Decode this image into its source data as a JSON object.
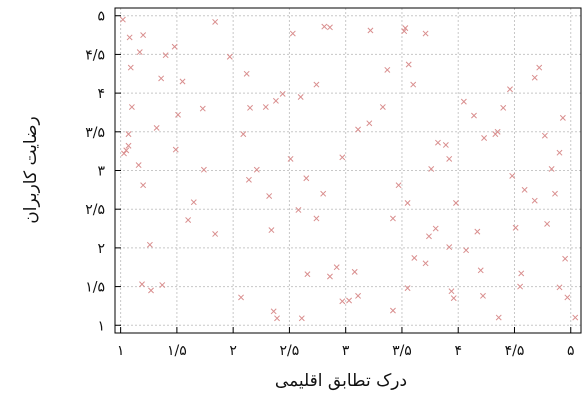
{
  "chart_data": {
    "type": "scatter",
    "xlabel": "درک تطابق اقلیمی",
    "ylabel": "رضایت کاربران",
    "xlim": [
      0.95,
      5.1
    ],
    "ylim": [
      0.9,
      5.1
    ],
    "grid": true,
    "marker": "x",
    "marker_color": "#d98e8e",
    "x_ticks": [
      {
        "value": 1,
        "label": "۱"
      },
      {
        "value": 1.5,
        "label": "۱/۵"
      },
      {
        "value": 2,
        "label": "۲"
      },
      {
        "value": 2.5,
        "label": "۲/۵"
      },
      {
        "value": 3,
        "label": "۳"
      },
      {
        "value": 3.5,
        "label": "۳/۵"
      },
      {
        "value": 4,
        "label": "۴"
      },
      {
        "value": 4.5,
        "label": "۴/۵"
      },
      {
        "value": 5,
        "label": "۵"
      }
    ],
    "y_ticks": [
      {
        "value": 1,
        "label": "۱"
      },
      {
        "value": 1.5,
        "label": "۱/۵"
      },
      {
        "value": 2,
        "label": "۲"
      },
      {
        "value": 2.5,
        "label": "۲/۵"
      },
      {
        "value": 3,
        "label": "۳"
      },
      {
        "value": 3.5,
        "label": "۳/۵"
      },
      {
        "value": 4,
        "label": "۴"
      },
      {
        "value": 4.5,
        "label": "۴/۵"
      },
      {
        "value": 5,
        "label": "۵"
      }
    ],
    "points": [
      [
        1.09,
        4.33
      ],
      [
        1.08,
        4.72
      ],
      [
        1.02,
        4.95
      ],
      [
        1.2,
        4.75
      ],
      [
        1.17,
        4.53
      ],
      [
        1.07,
        3.47
      ],
      [
        1.05,
        3.26
      ],
      [
        1.16,
        3.07
      ],
      [
        1.07,
        3.32
      ],
      [
        1.1,
        3.82
      ],
      [
        1.03,
        3.22
      ],
      [
        1.26,
        2.04
      ],
      [
        1.2,
        2.81
      ],
      [
        1.32,
        3.55
      ],
      [
        1.4,
        4.49
      ],
      [
        1.48,
        4.6
      ],
      [
        1.36,
        4.19
      ],
      [
        1.51,
        3.72
      ],
      [
        1.6,
        2.36
      ],
      [
        1.73,
        3.8
      ],
      [
        1.74,
        3.01
      ],
      [
        1.84,
        2.18
      ],
      [
        1.84,
        4.92
      ],
      [
        1.27,
        1.45
      ],
      [
        1.19,
        1.53
      ],
      [
        1.37,
        1.52
      ],
      [
        1.49,
        3.27
      ],
      [
        1.55,
        4.15
      ],
      [
        1.65,
        2.59
      ],
      [
        1.97,
        4.47
      ],
      [
        2.12,
        4.25
      ],
      [
        2.29,
        3.82
      ],
      [
        2.38,
        3.9
      ],
      [
        2.44,
        3.99
      ],
      [
        2.21,
        3.01
      ],
      [
        2.09,
        3.47
      ],
      [
        2.15,
        3.81
      ],
      [
        2.14,
        2.88
      ],
      [
        2.34,
        2.23
      ],
      [
        2.53,
        4.77
      ],
      [
        2.6,
        3.95
      ],
      [
        2.74,
        4.11
      ],
      [
        2.81,
        4.86
      ],
      [
        2.86,
        4.85
      ],
      [
        2.51,
        3.15
      ],
      [
        2.65,
        2.9
      ],
      [
        2.58,
        2.49
      ],
      [
        2.74,
        2.38
      ],
      [
        2.8,
        2.7
      ],
      [
        2.97,
        3.17
      ],
      [
        2.66,
        1.66
      ],
      [
        2.86,
        1.63
      ],
      [
        2.07,
        1.36
      ],
      [
        2.36,
        1.18
      ],
      [
        2.61,
        1.09
      ],
      [
        2.92,
        1.75
      ],
      [
        2.97,
        1.31
      ],
      [
        2.32,
        2.67
      ],
      [
        2.39,
        1.09
      ],
      [
        3.03,
        1.32
      ],
      [
        3.08,
        1.69
      ],
      [
        3.11,
        1.38
      ],
      [
        3.22,
        4.81
      ],
      [
        3.33,
        3.82
      ],
      [
        3.11,
        3.53
      ],
      [
        3.21,
        3.61
      ],
      [
        3.42,
        2.38
      ],
      [
        3.47,
        2.81
      ],
      [
        3.53,
        4.84
      ],
      [
        3.52,
        4.8
      ],
      [
        3.56,
        4.37
      ],
      [
        3.6,
        4.11
      ],
      [
        3.71,
        4.77
      ],
      [
        3.55,
        2.58
      ],
      [
        3.74,
        2.15
      ],
      [
        3.8,
        2.25
      ],
      [
        3.61,
        1.87
      ],
      [
        3.71,
        1.8
      ],
      [
        3.92,
        2.01
      ],
      [
        3.94,
        1.44
      ],
      [
        3.96,
        1.35
      ],
      [
        3.42,
        1.19
      ],
      [
        3.55,
        1.48
      ],
      [
        3.76,
        3.02
      ],
      [
        3.82,
        3.36
      ],
      [
        3.89,
        3.33
      ],
      [
        3.92,
        3.15
      ],
      [
        3.98,
        2.58
      ],
      [
        3.37,
        4.3
      ],
      [
        4.05,
        3.89
      ],
      [
        4.14,
        3.71
      ],
      [
        4.23,
        3.42
      ],
      [
        4.33,
        3.47
      ],
      [
        4.35,
        3.5
      ],
      [
        4.4,
        3.81
      ],
      [
        4.48,
        2.93
      ],
      [
        4.17,
        2.21
      ],
      [
        4.2,
        1.71
      ],
      [
        4.36,
        1.1
      ],
      [
        4.22,
        1.38
      ],
      [
        4.51,
        2.26
      ],
      [
        4.59,
        2.75
      ],
      [
        4.68,
        2.61
      ],
      [
        4.79,
        2.31
      ],
      [
        4.83,
        3.02
      ],
      [
        4.9,
        3.23
      ],
      [
        4.77,
        3.45
      ],
      [
        4.68,
        4.2
      ],
      [
        4.95,
        1.86
      ],
      [
        4.9,
        1.49
      ],
      [
        4.56,
        1.67
      ],
      [
        5.04,
        1.1
      ],
      [
        4.97,
        1.36
      ],
      [
        4.72,
        4.33
      ],
      [
        4.93,
        3.68
      ],
      [
        4.46,
        4.05
      ],
      [
        4.86,
        2.7
      ],
      [
        4.55,
        1.5
      ],
      [
        4.07,
        1.97
      ]
    ]
  }
}
